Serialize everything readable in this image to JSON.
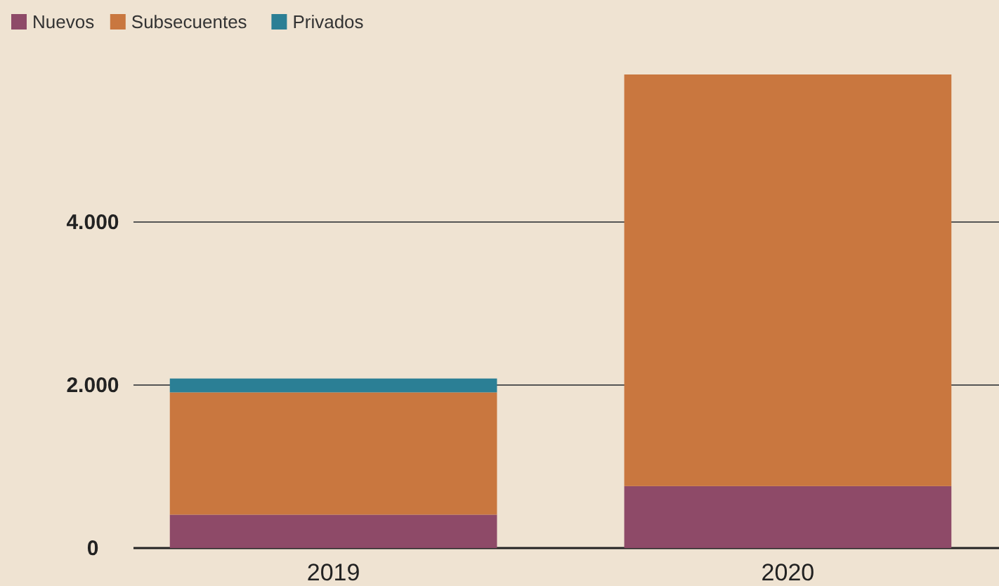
{
  "chart_data": {
    "type": "bar",
    "stacked": true,
    "categories": [
      "2019",
      "2020"
    ],
    "series": [
      {
        "name": "Nuevos",
        "color": "#8e4a68",
        "values": [
          410,
          760
        ]
      },
      {
        "name": "Subsecuentes",
        "color": "#c9773f",
        "values": [
          1500,
          5050
        ]
      },
      {
        "name": "Privados",
        "color": "#2b7f95",
        "values": [
          170,
          0
        ]
      }
    ],
    "yticks": [
      {
        "value": 0,
        "label": "0"
      },
      {
        "value": 2000,
        "label": "2.000"
      },
      {
        "value": 4000,
        "label": "4.000"
      }
    ],
    "ylim": [
      0,
      5810
    ],
    "grid": "y",
    "legend": "top left"
  }
}
